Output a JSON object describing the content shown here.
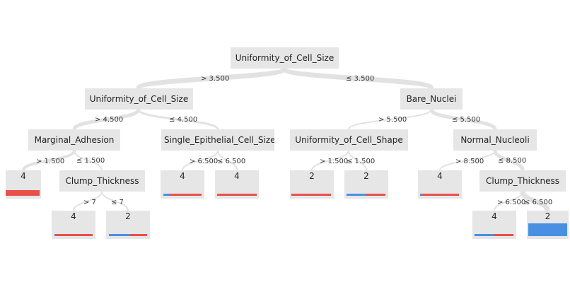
{
  "tree": {
    "split_nodes": {
      "root": "Uniformity_of_Cell_Size",
      "left": "Uniformity_of_Cell_Size",
      "right": "Bare_Nuclei",
      "left_left": "Marginal_Adhesion",
      "left_right": "Single_Epithelial_Cell_Size",
      "right_left": "Uniformity_of_Cell_Shape",
      "right_right": "Normal_Nucleoli",
      "left_left_right": "Clump_Thickness",
      "right_right_right": "Clump_Thickness"
    },
    "edge_labels": {
      "root_left": "> 3.500",
      "root_right": "≤ 3.500",
      "left_left": "> 4.500",
      "left_right": "≤ 4.500",
      "right_left": "> 5.500",
      "right_right": "≤ 5.500",
      "ll_left": "> 1.500",
      "ll_right": "≤ 1.500",
      "lr_left": "> 6.500",
      "lr_right": "≤ 6.500",
      "rl_left": "> 1.500",
      "rl_right": "≤ 1.500",
      "rr_left": "> 8.500",
      "rr_right": "≤ 8.500",
      "llr_left": "> 7",
      "llr_right": "≤ 7",
      "rrr_left": "> 6.500",
      "rrr_right": "≤ 6.500"
    },
    "leaves": {
      "leaf_a": {
        "label": "4",
        "share_class_2": 0.0
      },
      "leaf_b": {
        "label": "4",
        "share_class_2": 0.02
      },
      "leaf_c": {
        "label": "2",
        "share_class_2": 0.55
      },
      "leaf_d": {
        "label": "4",
        "share_class_2": 0.15
      },
      "leaf_e": {
        "label": "4",
        "share_class_2": 0.02
      },
      "leaf_f": {
        "label": "2",
        "share_class_2": 0.5
      },
      "leaf_g": {
        "label": "4",
        "share_class_2": 0.0
      },
      "leaf_h": {
        "label": "4",
        "share_class_2": 0.05
      },
      "leaf_i": {
        "label": "2",
        "share_class_2": 0.5
      },
      "leaf_j": {
        "label": "4",
        "share_class_2": 0.5
      },
      "leaf_k": {
        "label": "2",
        "share_class_2": 1.0
      }
    },
    "class_colors": {
      "class_2": "#4a90e2",
      "class_4": "#e8504a"
    }
  }
}
